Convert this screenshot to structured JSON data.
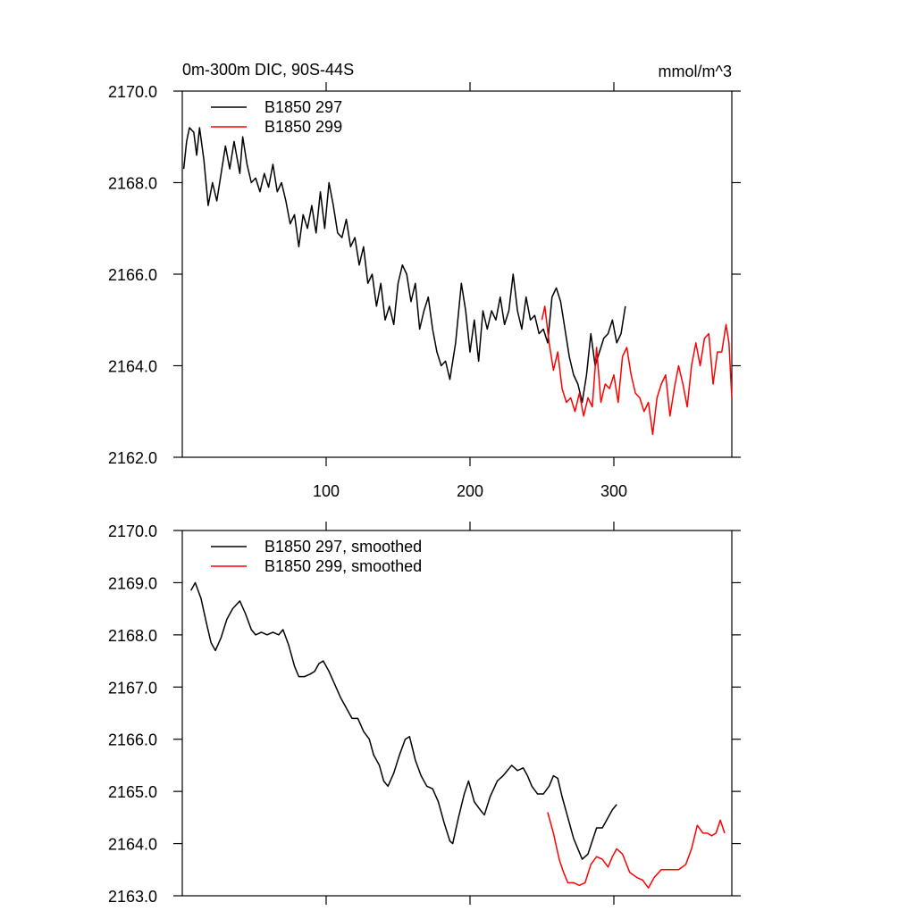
{
  "chart_data": [
    {
      "type": "line",
      "title": "0m-300m DIC, 90S-44S",
      "units_label": "mmol/m^3",
      "xlim": [
        0,
        382
      ],
      "xticks": [
        100,
        200,
        300
      ],
      "ylim": [
        2162,
        2170
      ],
      "yticks": [
        {
          "value": 2162,
          "label": "2162.0"
        },
        {
          "value": 2164,
          "label": "2164.0"
        },
        {
          "value": 2166,
          "label": "2166.0"
        },
        {
          "value": 2168,
          "label": "2168.0"
        },
        {
          "value": 2170,
          "label": "2170.0"
        }
      ],
      "legend": "upper left",
      "series": [
        {
          "name": "B1850 297",
          "color": "#000000",
          "x": [
            1,
            3,
            5,
            8,
            10,
            12,
            15,
            18,
            21,
            24,
            27,
            30,
            33,
            36,
            40,
            42,
            45,
            48,
            51,
            54,
            57,
            60,
            63,
            66,
            69,
            72,
            75,
            78,
            81,
            84,
            87,
            90,
            93,
            96,
            99,
            102,
            105,
            108,
            111,
            114,
            117,
            120,
            123,
            126,
            129,
            132,
            135,
            138,
            141,
            144,
            147,
            150,
            153,
            156,
            159,
            162,
            165,
            168,
            171,
            174,
            177,
            180,
            183,
            186,
            190,
            194,
            197,
            200,
            203,
            206,
            209,
            212,
            215,
            218,
            221,
            224,
            227,
            230,
            233,
            236,
            239,
            242,
            245,
            248,
            251,
            254,
            257,
            260,
            263,
            266,
            269,
            272,
            275,
            278,
            281,
            284,
            287,
            290,
            293,
            296,
            299,
            302,
            305,
            308
          ],
          "values": [
            2168.3,
            2168.9,
            2169.2,
            2169.1,
            2168.6,
            2169.2,
            2168.5,
            2167.5,
            2168.0,
            2167.6,
            2168.2,
            2168.8,
            2168.3,
            2168.9,
            2168.2,
            2169.0,
            2168.4,
            2168.0,
            2168.1,
            2167.8,
            2168.2,
            2167.9,
            2168.4,
            2167.8,
            2168.0,
            2167.6,
            2167.1,
            2167.3,
            2166.6,
            2167.3,
            2167.0,
            2167.5,
            2166.9,
            2167.8,
            2167.0,
            2168.0,
            2167.5,
            2166.9,
            2166.8,
            2167.2,
            2166.6,
            2166.8,
            2166.2,
            2166.6,
            2165.8,
            2166.0,
            2165.3,
            2165.8,
            2165.0,
            2165.3,
            2164.9,
            2165.8,
            2166.2,
            2166.0,
            2165.4,
            2165.8,
            2164.8,
            2165.2,
            2165.5,
            2164.8,
            2164.3,
            2164.0,
            2164.1,
            2163.7,
            2164.5,
            2165.8,
            2165.2,
            2164.3,
            2165.0,
            2164.1,
            2165.2,
            2164.8,
            2165.2,
            2165.0,
            2165.5,
            2164.9,
            2165.2,
            2166.0,
            2165.2,
            2164.8,
            2165.5,
            2165.0,
            2165.1,
            2164.7,
            2164.8,
            2164.5,
            2165.5,
            2165.7,
            2165.4,
            2164.8,
            2164.2,
            2163.8,
            2163.6,
            2163.2,
            2163.8,
            2164.7,
            2164.0,
            2164.3,
            2164.6,
            2164.7,
            2165.0,
            2164.5,
            2164.7,
            2165.3
          ]
        },
        {
          "name": "B1850 299",
          "color": "#ff0000",
          "x": [
            250,
            252,
            255,
            258,
            261,
            264,
            267,
            270,
            273,
            276,
            279,
            282,
            285,
            288,
            291,
            294,
            297,
            300,
            303,
            306,
            309,
            312,
            315,
            318,
            321,
            324,
            327,
            330,
            333,
            336,
            339,
            342,
            345,
            348,
            351,
            354,
            357,
            360,
            363,
            366,
            369,
            372,
            375,
            378,
            380,
            382
          ],
          "values": [
            2165.0,
            2165.3,
            2164.5,
            2163.9,
            2164.3,
            2163.5,
            2163.2,
            2163.3,
            2163.0,
            2163.4,
            2162.9,
            2163.3,
            2163.1,
            2164.4,
            2163.2,
            2163.6,
            2163.5,
            2163.8,
            2163.2,
            2164.2,
            2164.4,
            2163.8,
            2163.4,
            2163.3,
            2163.0,
            2163.2,
            2162.5,
            2163.3,
            2163.6,
            2163.8,
            2162.9,
            2163.5,
            2164.0,
            2163.6,
            2163.1,
            2164.0,
            2164.5,
            2164.0,
            2164.6,
            2164.7,
            2163.6,
            2164.3,
            2164.3,
            2164.9,
            2164.5,
            2163.3
          ]
        }
      ]
    },
    {
      "type": "line",
      "xlim": [
        0,
        382
      ],
      "xticks": [
        100,
        200,
        300
      ],
      "xtick_labels": false,
      "ylim": [
        2163,
        2170
      ],
      "yticks": [
        {
          "value": 2163,
          "label": "2163.0"
        },
        {
          "value": 2164,
          "label": "2164.0"
        },
        {
          "value": 2165,
          "label": "2165.0"
        },
        {
          "value": 2166,
          "label": "2166.0"
        },
        {
          "value": 2167,
          "label": "2167.0"
        },
        {
          "value": 2168,
          "label": "2168.0"
        },
        {
          "value": 2169,
          "label": "2169.0"
        },
        {
          "value": 2170,
          "label": "2170.0"
        }
      ],
      "legend": "upper left",
      "series": [
        {
          "name": "B1850 297, smoothed",
          "color": "#000000",
          "x": [
            6,
            9,
            13,
            17,
            20,
            23,
            27,
            31,
            35,
            40,
            44,
            48,
            51,
            55,
            59,
            63,
            67,
            70,
            74,
            78,
            81,
            85,
            89,
            92,
            95,
            98,
            102,
            106,
            110,
            114,
            118,
            122,
            126,
            130,
            133,
            137,
            140,
            143,
            147,
            151,
            155,
            158,
            162,
            166,
            170,
            174,
            178,
            182,
            186,
            188,
            192,
            196,
            199,
            203,
            207,
            210,
            214,
            219,
            223,
            226,
            229,
            233,
            237,
            240,
            243,
            247,
            251,
            255,
            258,
            261,
            264,
            268,
            272,
            275,
            278,
            282,
            285,
            288,
            292,
            296,
            299,
            302
          ],
          "values": [
            2168.85,
            2169.0,
            2168.7,
            2168.2,
            2167.85,
            2167.7,
            2167.95,
            2168.3,
            2168.5,
            2168.65,
            2168.4,
            2168.1,
            2168.0,
            2168.05,
            2168.0,
            2168.05,
            2168.0,
            2168.1,
            2167.8,
            2167.4,
            2167.2,
            2167.2,
            2167.25,
            2167.3,
            2167.45,
            2167.5,
            2167.3,
            2167.05,
            2166.8,
            2166.6,
            2166.4,
            2166.4,
            2166.15,
            2166.0,
            2165.7,
            2165.5,
            2165.2,
            2165.1,
            2165.35,
            2165.7,
            2166.0,
            2166.05,
            2165.6,
            2165.3,
            2165.1,
            2165.05,
            2164.8,
            2164.4,
            2164.05,
            2164.0,
            2164.5,
            2164.95,
            2165.2,
            2164.8,
            2164.65,
            2164.55,
            2164.9,
            2165.2,
            2165.3,
            2165.4,
            2165.5,
            2165.4,
            2165.45,
            2165.3,
            2165.1,
            2164.95,
            2164.95,
            2165.1,
            2165.3,
            2165.25,
            2164.9,
            2164.5,
            2164.1,
            2163.9,
            2163.7,
            2163.8,
            2164.05,
            2164.3,
            2164.3,
            2164.5,
            2164.65,
            2164.75
          ]
        },
        {
          "name": "B1850 299, smoothed",
          "color": "#ff0000",
          "x": [
            254,
            258,
            262,
            265,
            268,
            272,
            276,
            280,
            284,
            288,
            292,
            296,
            299,
            302,
            306,
            311,
            316,
            320,
            324,
            328,
            333,
            338,
            345,
            350,
            354,
            358,
            362,
            365,
            368,
            371,
            374,
            377
          ],
          "values": [
            2164.6,
            2164.2,
            2163.7,
            2163.45,
            2163.25,
            2163.25,
            2163.2,
            2163.25,
            2163.6,
            2163.75,
            2163.7,
            2163.55,
            2163.75,
            2163.9,
            2163.8,
            2163.45,
            2163.35,
            2163.3,
            2163.15,
            2163.35,
            2163.5,
            2163.5,
            2163.5,
            2163.6,
            2163.9,
            2164.35,
            2164.2,
            2164.2,
            2164.15,
            2164.2,
            2164.45,
            2164.2
          ]
        }
      ]
    }
  ]
}
